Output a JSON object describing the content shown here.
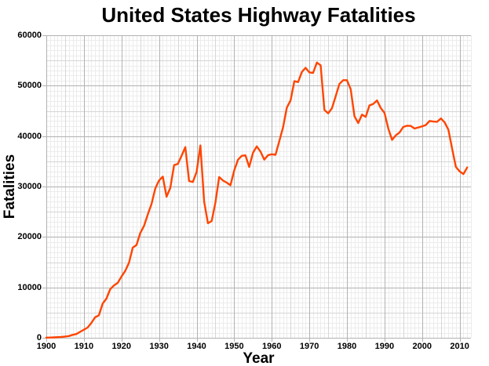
{
  "figure": {
    "title": "United States Highway Fatalities",
    "xlabel": "Year",
    "ylabel": "Fatalities"
  },
  "chart_data": {
    "type": "line",
    "title": "United States Highway Fatalities",
    "xlabel": "Year",
    "ylabel": "Fatalities",
    "xlim": [
      1900,
      2013
    ],
    "ylim": [
      0,
      60000
    ],
    "grid": {
      "visible": true,
      "x_minor_step": 1,
      "x_medium_step": 5,
      "x_major_step": 10,
      "y_minor_step": 1000,
      "y_medium_step": 5000,
      "y_major_step": 10000
    },
    "legend": "none",
    "x_major_ticks": [
      1900,
      1910,
      1920,
      1930,
      1940,
      1950,
      1960,
      1970,
      1980,
      1990,
      2000,
      2010
    ],
    "y_major_ticks": [
      0,
      10000,
      20000,
      30000,
      40000,
      50000,
      60000
    ],
    "colors": {
      "line": "#ff4500",
      "grid_minor": "#ececec",
      "grid_medium": "#d6d6d6",
      "grid_major": "#b2b2b2",
      "text": "#000000",
      "background": "#ffffff"
    },
    "series": [
      {
        "name": "Fatalities",
        "x": [
          1900,
          1901,
          1902,
          1903,
          1904,
          1905,
          1906,
          1907,
          1908,
          1909,
          1910,
          1911,
          1912,
          1913,
          1914,
          1915,
          1916,
          1917,
          1918,
          1919,
          1920,
          1921,
          1922,
          1923,
          1924,
          1925,
          1926,
          1927,
          1928,
          1929,
          1930,
          1931,
          1932,
          1933,
          1934,
          1935,
          1936,
          1937,
          1938,
          1939,
          1940,
          1941,
          1942,
          1943,
          1944,
          1945,
          1946,
          1947,
          1948,
          1949,
          1950,
          1951,
          1952,
          1953,
          1954,
          1955,
          1956,
          1957,
          1958,
          1959,
          1960,
          1961,
          1962,
          1963,
          1964,
          1965,
          1966,
          1967,
          1968,
          1969,
          1970,
          1971,
          1972,
          1973,
          1974,
          1975,
          1976,
          1977,
          1978,
          1979,
          1980,
          1981,
          1982,
          1983,
          1984,
          1985,
          1986,
          1987,
          1988,
          1989,
          1990,
          1991,
          1992,
          1993,
          1994,
          1995,
          1996,
          1997,
          1998,
          1999,
          2000,
          2001,
          2002,
          2003,
          2004,
          2005,
          2006,
          2007,
          2008,
          2009,
          2010,
          2011,
          2012
        ],
        "values": [
          36,
          54,
          79,
          117,
          172,
          252,
          338,
          581,
          751,
          1174,
          1599,
          2043,
          2968,
          4079,
          4468,
          6779,
          7766,
          9630,
          10390,
          10896,
          12155,
          13253,
          14859,
          17870,
          18400,
          20771,
          22194,
          24470,
          26557,
          29592,
          31204,
          31963,
          27979,
          29746,
          34240,
          34494,
          36126,
          37819,
          31083,
          30895,
          32914,
          38142,
          27007,
          22727,
          23165,
          26785,
          31874,
          31193,
          30775,
          30246,
          33186,
          35309,
          36088,
          36190,
          33890,
          36688,
          37965,
          36932,
          35331,
          36223,
          36399,
          36285,
          38980,
          41723,
          45645,
          47089,
          50894,
          50724,
          52725,
          53543,
          52627,
          52542,
          54589,
          54052,
          45196,
          44525,
          45523,
          47878,
          50331,
          51093,
          51091,
          49301,
          43945,
          42589,
          44257,
          43825,
          46087,
          46390,
          47087,
          45582,
          44599,
          41508,
          39250,
          40150,
          40716,
          41817,
          42065,
          42013,
          41501,
          41717,
          41945,
          42196,
          43005,
          42884,
          42836,
          43510,
          42708,
          41259,
          37423,
          33883,
          32999,
          32479,
          33782
        ]
      }
    ]
  }
}
